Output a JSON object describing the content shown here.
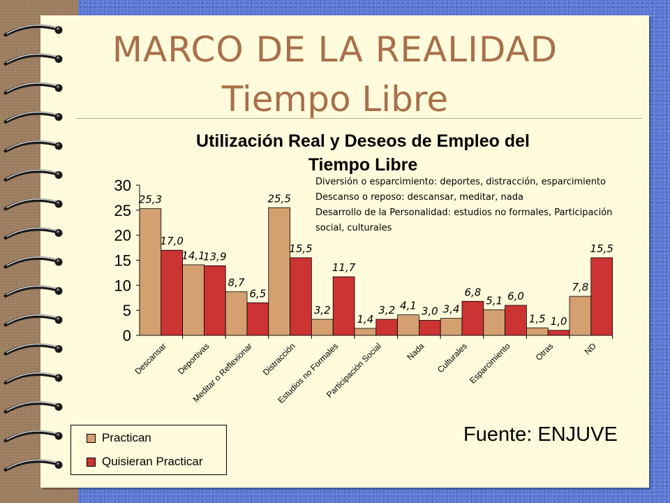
{
  "slide": {
    "title_line1": "MARCO DE LA REALIDAD",
    "title_line2": "Tiempo Libre",
    "source": "Fuente: ENJUVE"
  },
  "notes": [
    "Diversión o esparcimiento: deportes, distracción, esparcimiento",
    "Descanso o reposo: descansar, meditar, nada",
    "Desarrollo de la Personalidad: estudios no formales, Participación",
    "social, culturales"
  ],
  "colors": {
    "practican": "#d4a070",
    "quisieran": "#cc3333"
  },
  "chart_data": {
    "type": "bar",
    "title_line1": "Utilización Real y Deseos de Empleo del",
    "title_line2": "Tiempo Libre",
    "categories": [
      "Descansar",
      "Deportivas",
      "Meditar o Reflexionar",
      "Distracción",
      "Estudios no Formales",
      "Participación Social",
      "Nada",
      "Culturales",
      "Esparcimiento",
      "Otras",
      "ND"
    ],
    "series": [
      {
        "name": "Practican",
        "values": [
          25.3,
          14.1,
          8.7,
          25.5,
          3.2,
          1.4,
          4.1,
          3.4,
          5.1,
          1.5,
          7.8
        ],
        "labels": [
          "25,3",
          "14,1",
          "8,7",
          "25,5",
          "3,2",
          "1,4",
          "4,1",
          "3,4",
          "5,1",
          "1,5",
          "7,8"
        ]
      },
      {
        "name": "Quisieran Practicar",
        "values": [
          17.0,
          13.9,
          6.5,
          15.5,
          11.7,
          3.2,
          3.0,
          6.8,
          6.0,
          1.0,
          15.5
        ],
        "labels": [
          "17,0",
          "13,9",
          "6,5",
          "15,5",
          "11,7",
          "3,2",
          "3,0",
          "6,8",
          "6,0",
          "1,0",
          "15,5"
        ]
      }
    ],
    "yticks": [
      "0",
      "5",
      "10",
      "15",
      "20",
      "25",
      "30"
    ],
    "ylim": [
      0,
      30
    ],
    "grid": false,
    "legend_position": "bottom-left"
  }
}
